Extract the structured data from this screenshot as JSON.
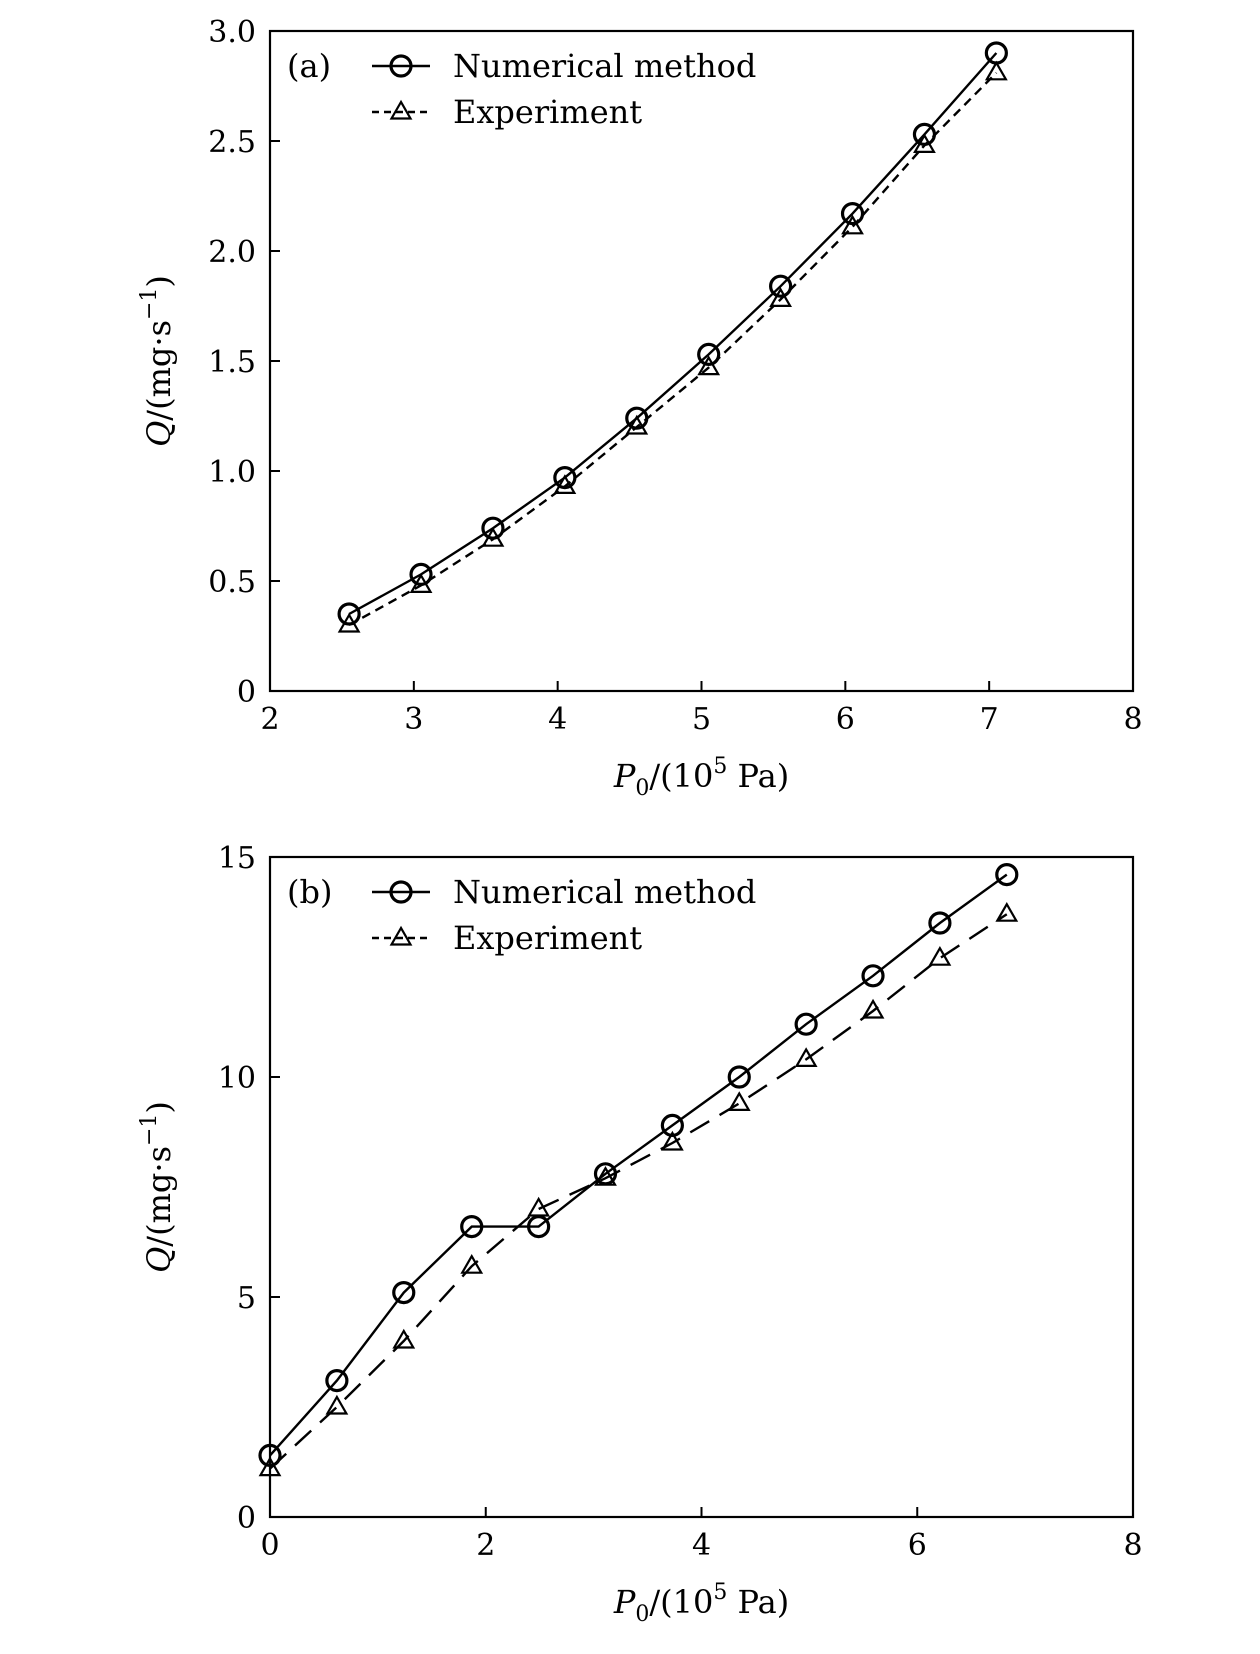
{
  "chart_data": [
    {
      "type": "line",
      "panel_label": "(a)",
      "xlabel": {
        "main": "P",
        "sub": "0",
        "mid": "/(10",
        "sup": "5",
        "tail": " Pa)"
      },
      "ylabel": {
        "main": "Q",
        "mid": "/(mg·s",
        "sup": "−1",
        "tail": ")"
      },
      "xlim": [
        2,
        8
      ],
      "ylim": [
        0,
        3.0
      ],
      "xticks": [
        2,
        3,
        4,
        5,
        6,
        7,
        8
      ],
      "xtick_labels": [
        "2",
        "3",
        "4",
        "5",
        "6",
        "7",
        "8"
      ],
      "yticks": [
        0,
        0.5,
        1.0,
        1.5,
        2.0,
        2.5,
        3.0
      ],
      "ytick_labels": [
        "0",
        "0.5",
        "1.0",
        "1.5",
        "2.0",
        "2.5",
        "3.0"
      ],
      "grid": false,
      "legend_position": "top-left",
      "series": [
        {
          "name": "Numerical method",
          "marker": "circle",
          "line_style": "solid",
          "x": [
            2.55,
            3.05,
            3.55,
            4.05,
            4.55,
            5.05,
            5.55,
            6.05,
            6.55,
            7.05
          ],
          "y": [
            0.35,
            0.53,
            0.74,
            0.97,
            1.24,
            1.53,
            1.84,
            2.17,
            2.53,
            2.9
          ]
        },
        {
          "name": "Experiment",
          "marker": "triangle",
          "line_style": "dashed",
          "x": [
            2.55,
            3.05,
            3.55,
            4.05,
            4.55,
            5.05,
            5.55,
            6.05,
            6.55,
            7.05
          ],
          "y": [
            0.3,
            0.48,
            0.69,
            0.93,
            1.2,
            1.47,
            1.78,
            2.11,
            2.48,
            2.81
          ]
        }
      ]
    },
    {
      "type": "line",
      "panel_label": "(b)",
      "xlabel": {
        "main": "P",
        "sub": "0",
        "mid": "/(10",
        "sup": "5",
        "tail": " Pa)"
      },
      "ylabel": {
        "main": "Q",
        "mid": "/(mg·s",
        "sup": "−1",
        "tail": ")"
      },
      "xlim": [
        0,
        8
      ],
      "ylim": [
        0,
        15
      ],
      "xticks": [
        0,
        2,
        4,
        6,
        8
      ],
      "xtick_labels": [
        "0",
        "2",
        "4",
        "6",
        "8"
      ],
      "yticks": [
        0,
        5,
        10,
        15
      ],
      "ytick_labels": [
        "0",
        "5",
        "10",
        "15"
      ],
      "grid": false,
      "legend_position": "top-left",
      "series": [
        {
          "name": "Numerical method",
          "marker": "circle",
          "line_style": "solid",
          "x": [
            0.0,
            0.62,
            1.24,
            1.87,
            2.49,
            3.11,
            3.73,
            4.35,
            4.97,
            5.59,
            6.21,
            6.83
          ],
          "y": [
            1.4,
            3.1,
            5.1,
            6.6,
            6.6,
            7.8,
            8.9,
            10.0,
            11.2,
            12.3,
            13.5,
            14.6
          ]
        },
        {
          "name": "Experiment",
          "marker": "triangle",
          "line_style": "dashed",
          "x": [
            0.0,
            0.62,
            1.24,
            1.87,
            2.49,
            3.11,
            3.73,
            4.35,
            4.97,
            5.59,
            6.21,
            6.83
          ],
          "y": [
            1.1,
            2.5,
            4.0,
            5.7,
            7.0,
            7.7,
            8.5,
            9.4,
            10.4,
            11.5,
            12.7,
            13.7
          ]
        }
      ]
    }
  ]
}
